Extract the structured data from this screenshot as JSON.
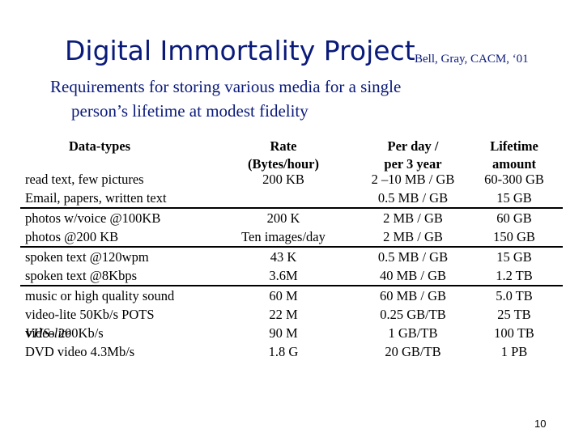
{
  "slide": {
    "title": "Digital Immortality Project",
    "citation": "Bell, Gray, CACM, ‘01",
    "subtitle_line1": "Requirements for storing various media for a single",
    "subtitle_line2": "person’s lifetime at modest fidelity",
    "page_number": "10"
  },
  "table": {
    "headers": {
      "type": "Data-types",
      "rate_line1": "Rate",
      "rate_line2": "(Bytes/hour)",
      "perday_line1": "Per day /",
      "perday_line2": "per 3 year",
      "lifetime_line1": "Lifetime",
      "lifetime_line2": "amount"
    },
    "groups": [
      [
        {
          "type": "read text, few pictures",
          "rate": "200 KB",
          "perday": "2 –10 MB / GB",
          "lifetime": "60-300 GB"
        },
        {
          "type": "Email, papers, written text",
          "rate": "",
          "perday": "0.5 MB / GB",
          "lifetime": "15 GB"
        }
      ],
      [
        {
          "type": "photos w/voice @100KB",
          "rate": "200 K",
          "perday": "2 MB / GB",
          "lifetime": "60 GB"
        },
        {
          "type": "photos @200 KB",
          "rate": "Ten images/day",
          "perday": "2 MB / GB",
          "lifetime": "150 GB"
        }
      ],
      [
        {
          "type": "spoken text @120wpm",
          "rate": "43 K",
          "perday": "0.5 MB / GB",
          "lifetime": "15 GB"
        },
        {
          "type": "spoken text @8Kbps",
          "rate": "3.6M",
          "perday": "40 MB / GB",
          "lifetime": "1.2 TB"
        }
      ],
      [
        {
          "type": "music or high quality sound",
          "rate": "60 M",
          "perday": "60 MB / GB",
          "lifetime": "5.0 TB"
        },
        {
          "type": "video-lite 50Kb/s POTS",
          "rate": "22 M",
          "perday": "0.25 GB/TB",
          "lifetime": "25 TB"
        },
        {
          "type_prefix": "video 200Kb/s ",
          "type_italic": "VHS-lite",
          "rate": "90 M",
          "perday": "1 GB/TB",
          "lifetime": "100 TB"
        },
        {
          "type": "DVD video 4.3Mb/s",
          "rate": "1.8 G",
          "perday": "20 GB/TB",
          "lifetime": "1 PB"
        }
      ]
    ]
  }
}
